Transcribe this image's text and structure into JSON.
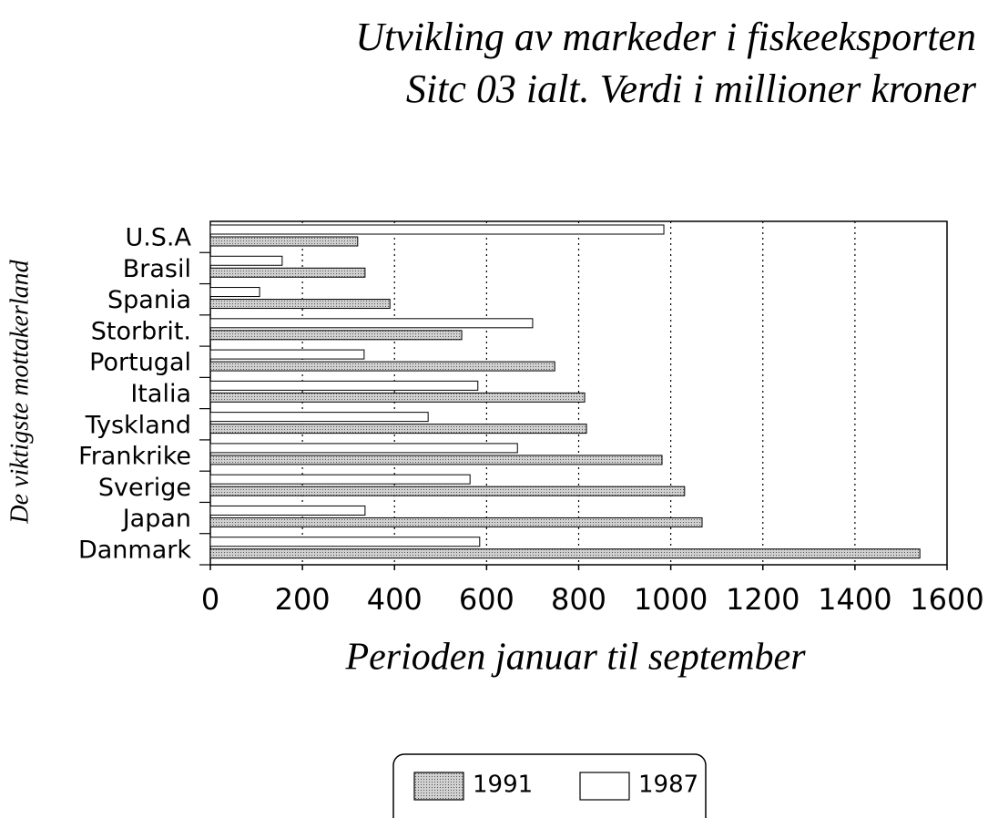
{
  "chart_data": {
    "type": "bar",
    "orientation": "horizontal",
    "title": "Utvikling av markeder i fiskeeksporten",
    "subtitle": "Sitc 03 ialt. Verdi i millioner kroner",
    "xlabel": "Perioden januar til september",
    "ylabel": "De viktigste mottakerland",
    "categories": [
      "U.S.A",
      "Brasil",
      "Spania",
      "Storbrit.",
      "Portugal",
      "Italia",
      "Tyskland",
      "Frankrike",
      "Sverige",
      "Japan",
      "Danmark"
    ],
    "series": [
      {
        "name": "1991",
        "color": "#d0d0d0",
        "values": [
          320,
          336,
          390,
          546,
          748,
          813,
          817,
          981,
          1030,
          1068,
          1541
        ]
      },
      {
        "name": "1987",
        "color": "#ffffff",
        "values": [
          985,
          156,
          107,
          700,
          334,
          581,
          473,
          667,
          564,
          336,
          585
        ]
      }
    ],
    "xlim": [
      0,
      1600
    ],
    "xticks": [
      0,
      200,
      400,
      600,
      800,
      1000,
      1200,
      1400,
      1600
    ],
    "grid": true,
    "legend": "bottom"
  }
}
